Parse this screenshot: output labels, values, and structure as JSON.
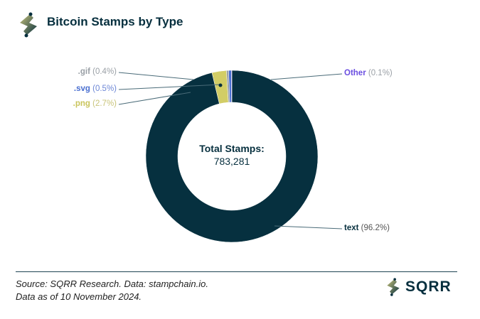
{
  "header": {
    "title": "Bitcoin Stamps by Type"
  },
  "footer": {
    "source": "Source: SQRR Research. Data: stampchain.io.",
    "date": "Data as of 10 November 2024.",
    "brand": "SQRR"
  },
  "colors": {
    "text": "#06303f",
    "png": "#d2cd66",
    "gif": "#9aa0a6",
    "svg": "#4a6fd0",
    "other": "#8b6cf0"
  },
  "chart_data": {
    "type": "pie",
    "title": "Bitcoin Stamps by Type",
    "center_label": "Total Stamps:",
    "center_value": "783,281",
    "slices": [
      {
        "name": "text",
        "label": "text",
        "pct_label": "(96.2%)",
        "value": 96.2
      },
      {
        "name": "png",
        "label": ".png",
        "pct_label": "(2.7%)",
        "value": 2.7
      },
      {
        "name": "gif",
        "label": ".gif",
        "pct_label": "(0.4%)",
        "value": 0.4
      },
      {
        "name": "svg",
        "label": ".svg",
        "pct_label": "(0.5%)",
        "value": 0.5
      },
      {
        "name": "other",
        "label": "Other",
        "pct_label": "(0.1%)",
        "value": 0.1
      }
    ]
  }
}
